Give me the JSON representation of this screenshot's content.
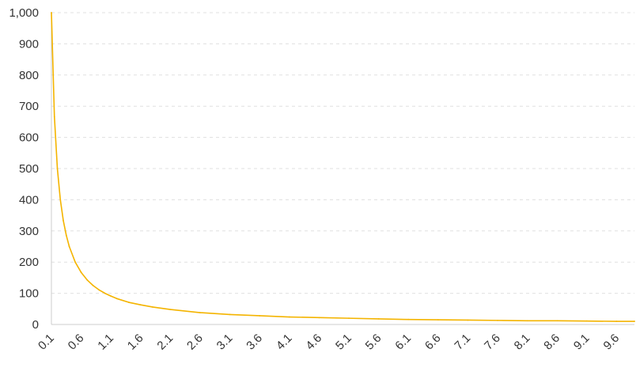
{
  "chart_data": {
    "type": "line",
    "title": "",
    "xlabel": "",
    "ylabel": "",
    "ylim": [
      0,
      1000
    ],
    "xlim": [
      0.1,
      9.9
    ],
    "grid": true,
    "legend": "none",
    "line_color": "#f4b400",
    "y_ticks": [
      "0",
      "100",
      "200",
      "300",
      "400",
      "500",
      "600",
      "700",
      "800",
      "900",
      "1,000"
    ],
    "x_ticks": [
      "0.1",
      "0.6",
      "1.1",
      "1.6",
      "2.1",
      "2.6",
      "3.1",
      "3.6",
      "4.1",
      "4.6",
      "5.1",
      "5.6",
      "6.1",
      "6.6",
      "7.1",
      "7.6",
      "8.1",
      "8.6",
      "9.1",
      "9.6"
    ],
    "series": [
      {
        "x": [
          0.1,
          0.15,
          0.2,
          0.25,
          0.3,
          0.35,
          0.4,
          0.5,
          0.6,
          0.7,
          0.8,
          0.9,
          1.0,
          1.1,
          1.2,
          1.4,
          1.6,
          1.8,
          2.1,
          2.6,
          3.1,
          3.6,
          4.1,
          4.6,
          5.1,
          5.6,
          6.1,
          6.6,
          7.1,
          7.6,
          8.1,
          8.6,
          9.1,
          9.6,
          9.9
        ],
        "y": [
          1000,
          667,
          500,
          400,
          333,
          286,
          250,
          200,
          167,
          143,
          125,
          111,
          100,
          91,
          83,
          71,
          63,
          56,
          48,
          38,
          32,
          28,
          24,
          22,
          20,
          18,
          16,
          15,
          14,
          13,
          12,
          12,
          11,
          10,
          10
        ]
      }
    ]
  }
}
